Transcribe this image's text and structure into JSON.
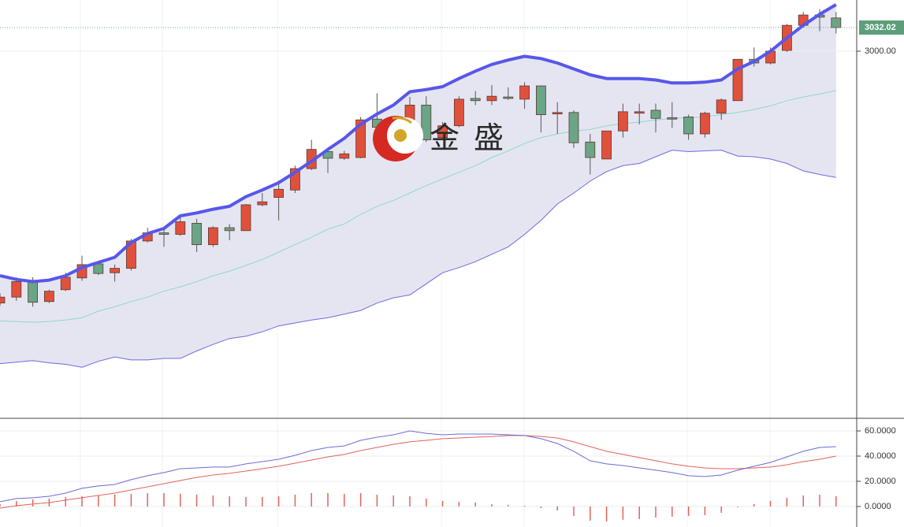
{
  "chart_data": [
    {
      "type": "candlestick",
      "open": [
        2659,
        2667,
        2688,
        2661,
        2677,
        2693,
        2712,
        2700,
        2706,
        2743,
        2754,
        2752,
        2767,
        2738,
        2761,
        2757,
        2792,
        2802,
        2812,
        2841,
        2864,
        2855,
        2856,
        2908,
        2897,
        2904,
        2927,
        2883,
        2899,
        2936,
        2933,
        2938,
        2935,
        2953,
        2915,
        2917,
        2877,
        2854,
        2892,
        2916,
        2920,
        2910,
        2911,
        2888,
        2916,
        2933,
        2989,
        2984,
        3001,
        3035,
        3049,
        3045
      ],
      "high": [
        2672,
        2694,
        2694,
        2677,
        2700,
        2723,
        2714,
        2711,
        2746,
        2761,
        2762,
        2779,
        2773,
        2763,
        2766,
        2793,
        2808,
        2825,
        2845,
        2880,
        2869,
        2865,
        2911,
        2943,
        2909,
        2938,
        2939,
        2904,
        2939,
        2946,
        2954,
        2951,
        2958,
        2953,
        2931,
        2920,
        2888,
        2892,
        2929,
        2929,
        2929,
        2931,
        2914,
        2918,
        2936,
        2989,
        3005,
        3005,
        3037,
        3053,
        3057,
        3053
      ],
      "low": [
        2655,
        2662,
        2654,
        2659,
        2675,
        2689,
        2697,
        2688,
        2703,
        2741,
        2735,
        2750,
        2728,
        2735,
        2744,
        2757,
        2790,
        2771,
        2808,
        2839,
        2835,
        2853,
        2855,
        2893,
        2893,
        2899,
        2877,
        2880,
        2897,
        2927,
        2927,
        2934,
        2922,
        2890,
        2888,
        2869,
        2833,
        2854,
        2883,
        2901,
        2890,
        2896,
        2880,
        2883,
        2907,
        2933,
        2979,
        2982,
        2999,
        3032,
        3027,
        3024
      ],
      "close": [
        2667,
        2688,
        2660,
        2675,
        2694,
        2711,
        2699,
        2706,
        2743,
        2754,
        2752,
        2769,
        2738,
        2761,
        2757,
        2792,
        2796,
        2813,
        2841,
        2867,
        2855,
        2861,
        2907,
        2897,
        2904,
        2927,
        2880,
        2899,
        2935,
        2933,
        2939,
        2936,
        2953,
        2914,
        2917,
        2876,
        2856,
        2892,
        2918,
        2918,
        2909,
        2908,
        2888,
        2916,
        2934,
        2989,
        2984,
        3000,
        3035,
        3049,
        3046,
        3032.02
      ],
      "upper": [
        2696,
        2691,
        2688,
        2690,
        2696,
        2707,
        2714,
        2721,
        2741,
        2753,
        2760,
        2777,
        2781,
        2786,
        2790,
        2803,
        2812,
        2822,
        2836,
        2851,
        2867,
        2882,
        2901,
        2915,
        2927,
        2945,
        2948,
        2952,
        2963,
        2973,
        2982,
        2988,
        2993,
        2990,
        2984,
        2976,
        2968,
        2963,
        2963,
        2963,
        2961,
        2957,
        2957,
        2958,
        2961,
        2976,
        2986,
        3000,
        3018,
        3035,
        3050,
        3063
      ],
      "middle": [
        2635,
        2634,
        2633,
        2634,
        2636,
        2639,
        2648,
        2654,
        2661,
        2667,
        2675,
        2681,
        2688,
        2696,
        2702,
        2710,
        2718,
        2728,
        2738,
        2748,
        2759,
        2766,
        2779,
        2790,
        2798,
        2808,
        2818,
        2827,
        2836,
        2845,
        2856,
        2865,
        2875,
        2883,
        2888,
        2892,
        2894,
        2899,
        2902,
        2904,
        2907,
        2909,
        2910,
        2911,
        2914,
        2917,
        2921,
        2926,
        2933,
        2938,
        2942,
        2947
      ],
      "lower": [
        2577,
        2579,
        2581,
        2578,
        2576,
        2572,
        2580,
        2586,
        2582,
        2582,
        2584,
        2584,
        2594,
        2603,
        2611,
        2614,
        2620,
        2628,
        2632,
        2636,
        2639,
        2644,
        2649,
        2659,
        2666,
        2670,
        2685,
        2700,
        2707,
        2715,
        2725,
        2735,
        2752,
        2771,
        2793,
        2808,
        2824,
        2837,
        2845,
        2848,
        2857,
        2866,
        2864,
        2865,
        2866,
        2858,
        2857,
        2854,
        2848,
        2838,
        2833,
        2829
      ],
      "up_color": "#e0513c",
      "down_color": "#6aa586",
      "upper_color": "#5757ea",
      "middle_color": "#8ed9c6",
      "lower_color": "#6b6be0",
      "band_fill": "#e5e5f2",
      "ylim": [
        2504,
        3069.3
      ],
      "yticks": [
        {
          "value": 3000,
          "label": "3000.00"
        }
      ],
      "last_price": 3032.02,
      "last_price_color": "#5c9e7a",
      "watermark": "金盛"
    },
    {
      "type": "macd",
      "dif": [
        3.8,
        6.3,
        6.9,
        8.1,
        10.6,
        14.4,
        16.3,
        17.5,
        21.3,
        24.4,
        26.9,
        30,
        30.6,
        31.3,
        31.3,
        33.8,
        35.6,
        37.5,
        40.6,
        44.4,
        46.9,
        48.1,
        52.5,
        55,
        56.9,
        60,
        58.1,
        56.9,
        57.5,
        57.5,
        57.5,
        56.9,
        56.3,
        53.8,
        50,
        43.8,
        36.3,
        33.8,
        32.5,
        30.6,
        28.8,
        26.9,
        24.4,
        23.8,
        25,
        28.8,
        31.9,
        35,
        39.4,
        43.8,
        46.9,
        47.5
      ],
      "dea": [
        -1.3,
        0.6,
        1.9,
        3.1,
        5,
        6.9,
        8.8,
        10.6,
        13.1,
        15.6,
        18.1,
        20.6,
        23.1,
        25,
        26.3,
        28.1,
        30,
        31.9,
        34.4,
        36.9,
        39.4,
        41.3,
        44.4,
        46.9,
        49.4,
        51.3,
        52.5,
        53.8,
        54.4,
        55,
        55.6,
        56.3,
        56.3,
        55.6,
        54.4,
        51.3,
        47.5,
        43.8,
        41.3,
        38.8,
        36.3,
        33.8,
        31.9,
        30.6,
        30,
        30,
        30.6,
        31.3,
        33.1,
        35.6,
        37.5,
        40
      ],
      "hist": [
        1.9,
        4.4,
        5.6,
        6.3,
        7.5,
        8.1,
        8.8,
        9.4,
        10,
        10.6,
        10.6,
        10,
        9.4,
        8.8,
        8.1,
        7.5,
        7.5,
        8.1,
        9.4,
        10.6,
        10.6,
        10,
        10.6,
        9.4,
        8.8,
        8.1,
        6.3,
        4.4,
        3.8,
        3.1,
        1.9,
        1.3,
        0.6,
        -1.3,
        -3.1,
        -7.5,
        -11.3,
        -11.9,
        -10.6,
        -10,
        -8.8,
        -8.1,
        -7.5,
        -6.9,
        -5,
        -0.6,
        1.9,
        4.4,
        6.9,
        8.8,
        9.4,
        8.1
      ],
      "dif_color": "#6b6bd8",
      "dea_color": "#e2635a",
      "hist_color": "#e2635a",
      "ylim": [
        -16.3,
        69.4
      ],
      "yticks": [
        {
          "value": 60,
          "label": "60.0000"
        },
        {
          "value": 40,
          "label": "40.0000"
        },
        {
          "value": 20,
          "label": "20.0000"
        },
        {
          "value": 0,
          "label": "0.0000"
        }
      ],
      "grid": true
    }
  ]
}
